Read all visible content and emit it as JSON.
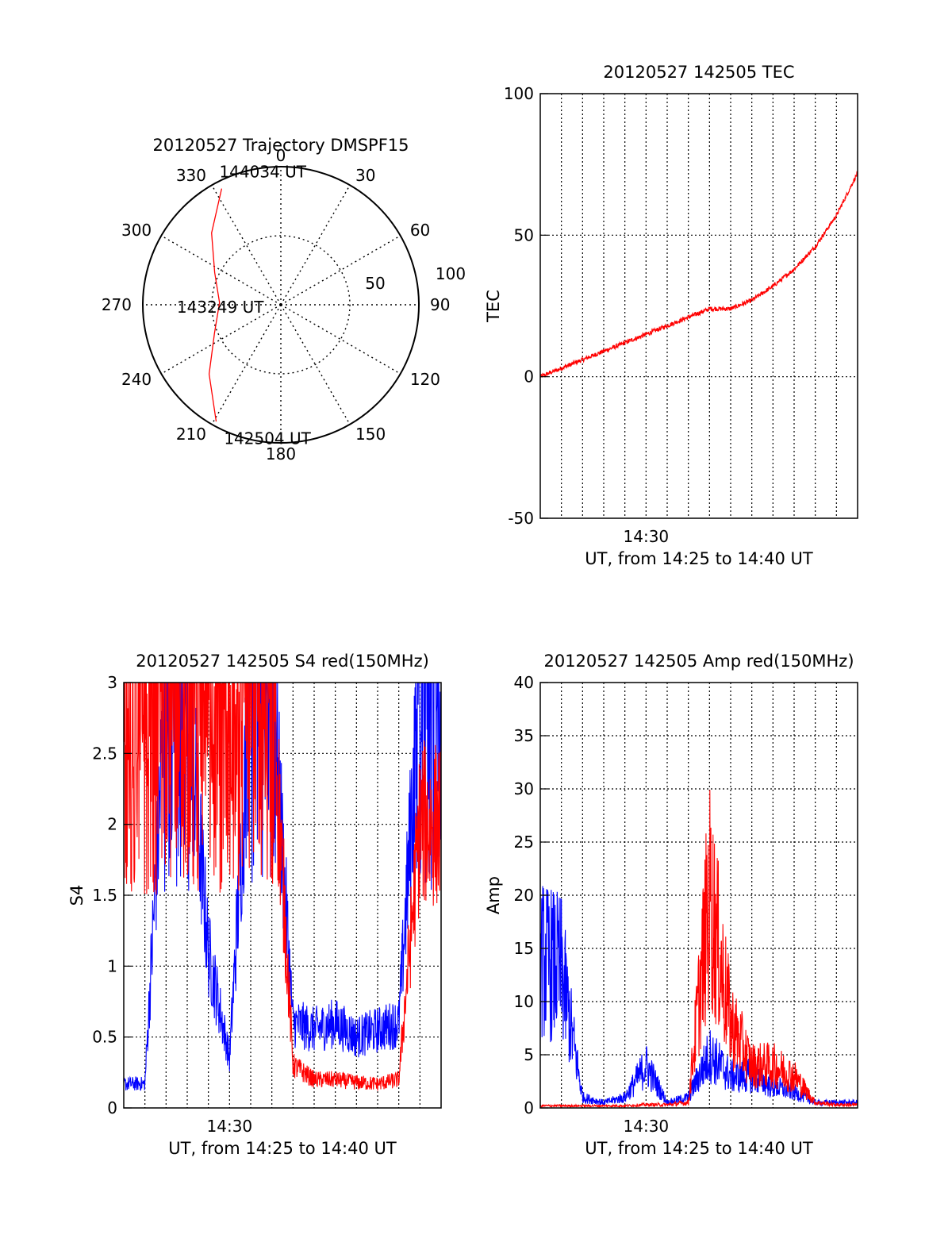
{
  "colors": {
    "red": "#ff0000",
    "blue": "#0000ff",
    "axis": "#000000",
    "grid": "#000000"
  },
  "chart_data": [
    {
      "type": "polar",
      "title": "20120527 Trajectory DMSPF15",
      "angle_labels": [
        "0",
        "30",
        "60",
        "90",
        "120",
        "150",
        "180",
        "210",
        "240",
        "270",
        "300",
        "330"
      ],
      "radius_labels": [
        "50",
        "100"
      ],
      "series": [
        {
          "color": "red",
          "points": [
            {
              "az": 333,
              "el": 5
            },
            {
              "az": 316,
              "el": 25
            },
            {
              "az": 296,
              "el": 42
            },
            {
              "az": 272,
              "el": 50
            },
            {
              "az": 247,
              "el": 43
            },
            {
              "az": 226,
              "el": 25
            },
            {
              "az": 209,
              "el": 3
            }
          ]
        }
      ],
      "annotations": [
        {
          "text": "144034 UT",
          "az": 350,
          "el": 2
        },
        {
          "text": "143249 UT",
          "az": 268,
          "el": 47
        },
        {
          "text": "142504 UT",
          "az": 188,
          "el": 2
        }
      ]
    },
    {
      "type": "line",
      "title": "20120527 142505 TEC",
      "xlabel": "UT, from 14:25 to 14:40 UT",
      "ylabel": "TEC",
      "xrange": [
        "14:25",
        "14:40"
      ],
      "xticks": [
        "14:30"
      ],
      "ylim": [
        -50,
        100
      ],
      "yticks": [
        "-50",
        "0",
        "50",
        "100"
      ],
      "grid": true,
      "series": [
        {
          "color": "red",
          "x": [
            "14:25",
            "14:26",
            "14:27",
            "14:28",
            "14:29",
            "14:30",
            "14:31",
            "14:32",
            "14:33",
            "14:34",
            "14:35",
            "14:36",
            "14:37",
            "14:38",
            "14:39",
            "14:40"
          ],
          "y": [
            0,
            3,
            6,
            9,
            12,
            15,
            18,
            21,
            24,
            24,
            27,
            32,
            38,
            46,
            57,
            72
          ]
        }
      ]
    },
    {
      "type": "line",
      "title": "20120527 142505 S4 red(150MHz)",
      "xlabel": "UT, from 14:25 to 14:40 UT",
      "ylabel": "S4",
      "xrange": [
        "14:25",
        "14:40"
      ],
      "xticks": [
        "14:30"
      ],
      "ylim": [
        0,
        3
      ],
      "yticks": [
        "0",
        "0.5",
        "1",
        "1.5",
        "2",
        "2.5",
        "3"
      ],
      "grid": true,
      "series": [
        {
          "color": "blue",
          "x": [
            "14:25",
            "14:26",
            "14:27",
            "14:28",
            "14:29",
            "14:30",
            "14:31",
            "14:32",
            "14:33",
            "14:34",
            "14:35",
            "14:36",
            "14:37",
            "14:38",
            "14:39",
            "14:40"
          ],
          "y": [
            0.17,
            0.17,
            3,
            3,
            1.1,
            0.35,
            3,
            3,
            0.6,
            0.55,
            0.6,
            0.5,
            0.55,
            0.6,
            3,
            3
          ]
        },
        {
          "color": "red",
          "x": [
            "14:25",
            "14:26",
            "14:27",
            "14:28",
            "14:29",
            "14:30",
            "14:31",
            "14:32",
            "14:33",
            "14:34",
            "14:35",
            "14:36",
            "14:37",
            "14:38",
            "14:39",
            "14:40"
          ],
          "y": [
            3,
            3,
            3,
            3,
            3,
            3,
            3,
            3,
            0.3,
            0.2,
            0.2,
            0.18,
            0.17,
            0.2,
            2,
            2
          ]
        }
      ]
    },
    {
      "type": "line",
      "title": "20120527 142505 Amp red(150MHz)",
      "xlabel": "UT, from 14:25 to 14:40 UT",
      "ylabel": "Amp",
      "xrange": [
        "14:25",
        "14:40"
      ],
      "xticks": [
        "14:30"
      ],
      "ylim": [
        0,
        40
      ],
      "yticks": [
        "0",
        "5",
        "10",
        "15",
        "20",
        "25",
        "30",
        "35",
        "40"
      ],
      "grid": true,
      "series": [
        {
          "color": "blue",
          "x": [
            "14:25",
            "14:26",
            "14:27",
            "14:28",
            "14:29",
            "14:30",
            "14:31",
            "14:32",
            "14:33",
            "14:34",
            "14:35",
            "14:36",
            "14:37",
            "14:38",
            "14:39",
            "14:40"
          ],
          "y": [
            14,
            13,
            1,
            0.5,
            1,
            4,
            0.5,
            1,
            5,
            3,
            3,
            2,
            1.5,
            0.5,
            0.5,
            0.5
          ]
        },
        {
          "color": "red",
          "x": [
            "14:25",
            "14:26",
            "14:27",
            "14:28",
            "14:29",
            "14:30",
            "14:31",
            "14:32",
            "14:33",
            "14:34",
            "14:35",
            "14:36",
            "14:37",
            "14:38",
            "14:39",
            "14:40"
          ],
          "y": [
            0.2,
            0.2,
            0.2,
            0.2,
            0.2,
            0.3,
            0.3,
            0.5,
            20,
            8,
            4,
            4,
            3,
            0.5,
            0.3,
            0.3
          ]
        }
      ]
    }
  ]
}
